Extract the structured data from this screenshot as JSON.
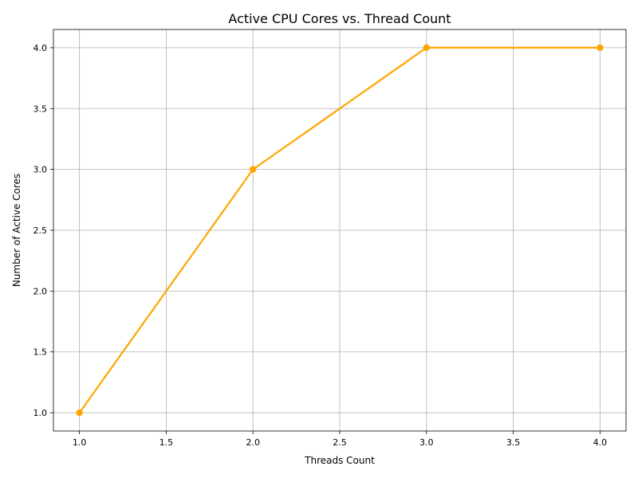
{
  "chart_data": {
    "type": "line",
    "title": "Active CPU Cores vs. Thread Count",
    "xlabel": "Threads Count",
    "ylabel": "Number of Active Cores",
    "x": [
      1,
      2,
      3,
      4
    ],
    "series": [
      {
        "values": [
          1,
          3,
          4,
          4
        ],
        "color": "#FFA500",
        "marker": "circle"
      }
    ],
    "xlim": [
      0.85,
      4.15
    ],
    "ylim": [
      0.85,
      4.15
    ],
    "xticks": [
      "1.0",
      "1.5",
      "2.0",
      "2.5",
      "3.0",
      "3.5",
      "4.0"
    ],
    "yticks": [
      "1.0",
      "1.5",
      "2.0",
      "2.5",
      "3.0",
      "3.5",
      "4.0"
    ],
    "grid": true
  }
}
